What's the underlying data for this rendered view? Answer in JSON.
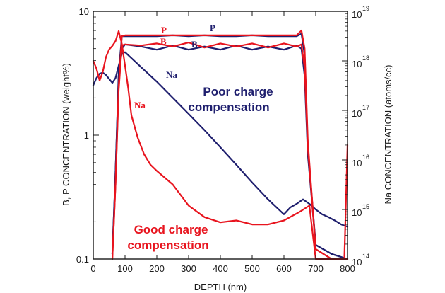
{
  "chart_data": {
    "type": "line",
    "xlabel": "DEPTH (nm)",
    "ylabel_left": "B, P CONCENTRATION (weight%)",
    "ylabel_right": "Na CONCENTRATION (atoms/cc)",
    "xlim": [
      0,
      800
    ],
    "ylim_left": [
      0.1,
      10
    ],
    "ylim_right": [
      100000000000000.0,
      1e+19
    ],
    "y_scale": "log",
    "x_ticks": [
      "0",
      "100",
      "200",
      "300",
      "400",
      "500",
      "600",
      "700",
      "800"
    ],
    "left_ticks": [
      "0.1",
      "1",
      "10"
    ],
    "right_ticks": [
      {
        "base": "10",
        "exp": "14"
      },
      {
        "base": "10",
        "exp": "15"
      },
      {
        "base": "10",
        "exp": "16"
      },
      {
        "base": "10",
        "exp": "17"
      },
      {
        "base": "10",
        "exp": "18"
      },
      {
        "base": "10",
        "exp": "19"
      }
    ],
    "colors": {
      "poor": "#1f1f6e",
      "good": "#e8141e"
    },
    "annotations": {
      "poor_title_line1": "Poor charge",
      "poor_title_line2": "compensation",
      "good_title_line1": "Good charge",
      "good_title_line2": "compensation",
      "p_poor": "P",
      "b_poor": "B",
      "na_poor": "Na",
      "p_good": "P",
      "b_good": "B",
      "na_good": "Na"
    },
    "series": [
      {
        "color_key": "poor",
        "axis": "left",
        "x": [
          60,
          70,
          80,
          90,
          100,
          150,
          200,
          250,
          300,
          350,
          400,
          450,
          500,
          550,
          600,
          640,
          655,
          665,
          675,
          700,
          750,
          800
        ],
        "y": [
          0.11,
          0.5,
          3.2,
          6.3,
          6.3,
          6.3,
          6.3,
          6.4,
          6.3,
          6.4,
          6.3,
          6.3,
          6.4,
          6.3,
          6.3,
          6.3,
          6.6,
          4.5,
          0.8,
          0.13,
          0.11,
          0.1
        ]
      },
      {
        "color_key": "poor",
        "axis": "left",
        "x": [
          60,
          70,
          80,
          90,
          100,
          150,
          200,
          250,
          300,
          350,
          400,
          450,
          500,
          550,
          600,
          640,
          655,
          665,
          675,
          700,
          750,
          800
        ],
        "y": [
          0.11,
          0.5,
          3,
          5,
          5.4,
          5.2,
          4.9,
          5.3,
          4.9,
          5.2,
          4.9,
          5.3,
          4.9,
          5.2,
          4.9,
          5.3,
          5,
          3,
          0.7,
          0.13,
          0.11,
          0.1
        ]
      },
      {
        "color_key": "poor",
        "axis": "right",
        "x": [
          0,
          10,
          20,
          30,
          40,
          60,
          70,
          80,
          90,
          100,
          150,
          200,
          250,
          300,
          350,
          400,
          450,
          500,
          550,
          600,
          620,
          640,
          660,
          680,
          700,
          720,
          740,
          760,
          780,
          800
        ],
        "y": [
          3.2e+17,
          4.5e+17,
          5.5e+17,
          5.8e+17,
          5.2e+17,
          3.6e+17,
          4.5e+17,
          8e+17,
          1.4e+18,
          1.5e+18,
          7.5e+17,
          3.8e+17,
          1.8e+17,
          8.5e+16,
          4e+16,
          1.8e+16,
          8000000000000000.0,
          3500000000000000.0,
          1600000000000000.0,
          800000000000000.0,
          1100000000000000.0,
          1300000000000000.0,
          1600000000000000.0,
          1300000000000000.0,
          1000000000000000.0,
          800000000000000.0,
          700000000000000.0,
          600000000000000.0,
          500000000000000.0,
          450000000000000.0
        ]
      },
      {
        "color_key": "good",
        "axis": "left",
        "x": [
          60,
          70,
          80,
          90,
          100,
          150,
          200,
          250,
          300,
          350,
          400,
          450,
          500,
          550,
          600,
          640,
          655,
          665,
          675,
          700,
          750,
          800
        ],
        "y": [
          0.1,
          0.4,
          2.5,
          6.3,
          6.4,
          6.4,
          6.4,
          6.4,
          6.4,
          6.4,
          6.4,
          6.4,
          6.4,
          6.4,
          6.4,
          6.4,
          7,
          5,
          0.9,
          0.12,
          0.1,
          0.1
        ]
      },
      {
        "color_key": "good",
        "axis": "left",
        "x": [
          60,
          70,
          80,
          90,
          100,
          150,
          200,
          250,
          300,
          350,
          400,
          450,
          500,
          550,
          600,
          640,
          655,
          665,
          675,
          700,
          750,
          800
        ],
        "y": [
          0.1,
          0.4,
          2.3,
          5.3,
          5.4,
          5.3,
          5.5,
          5.2,
          5.6,
          5.1,
          5.5,
          5.2,
          5.5,
          5.1,
          5.5,
          5.2,
          5.4,
          3.5,
          0.8,
          0.12,
          0.1,
          0.1
        ]
      },
      {
        "color_key": "good",
        "axis": "right",
        "x": [
          0,
          10,
          20,
          30,
          40,
          50,
          60,
          70,
          80,
          90,
          100,
          110,
          120,
          140,
          160,
          180,
          200,
          250,
          300,
          350,
          400,
          450,
          500,
          550,
          600,
          650,
          680,
          700,
          750,
          790,
          800
        ],
        "y": [
          1e+18,
          7e+17,
          4e+17,
          6e+17,
          1.2e+18,
          1.7e+18,
          2e+18,
          2.5e+18,
          4e+18,
          2.2e+18,
          8e+17,
          2.8e+17,
          8e+16,
          2.8e+16,
          1.3e+16,
          8000000000000000.0,
          6000000000000000.0,
          3200000000000000.0,
          1200000000000000.0,
          700000000000000.0,
          550000000000000.0,
          600000000000000.0,
          500000000000000.0,
          500000000000000.0,
          600000000000000.0,
          900000000000000.0,
          1200000000000000.0,
          100000000000000.0,
          100000000000000.0,
          100000000000000.0,
          2e+16
        ]
      }
    ]
  }
}
